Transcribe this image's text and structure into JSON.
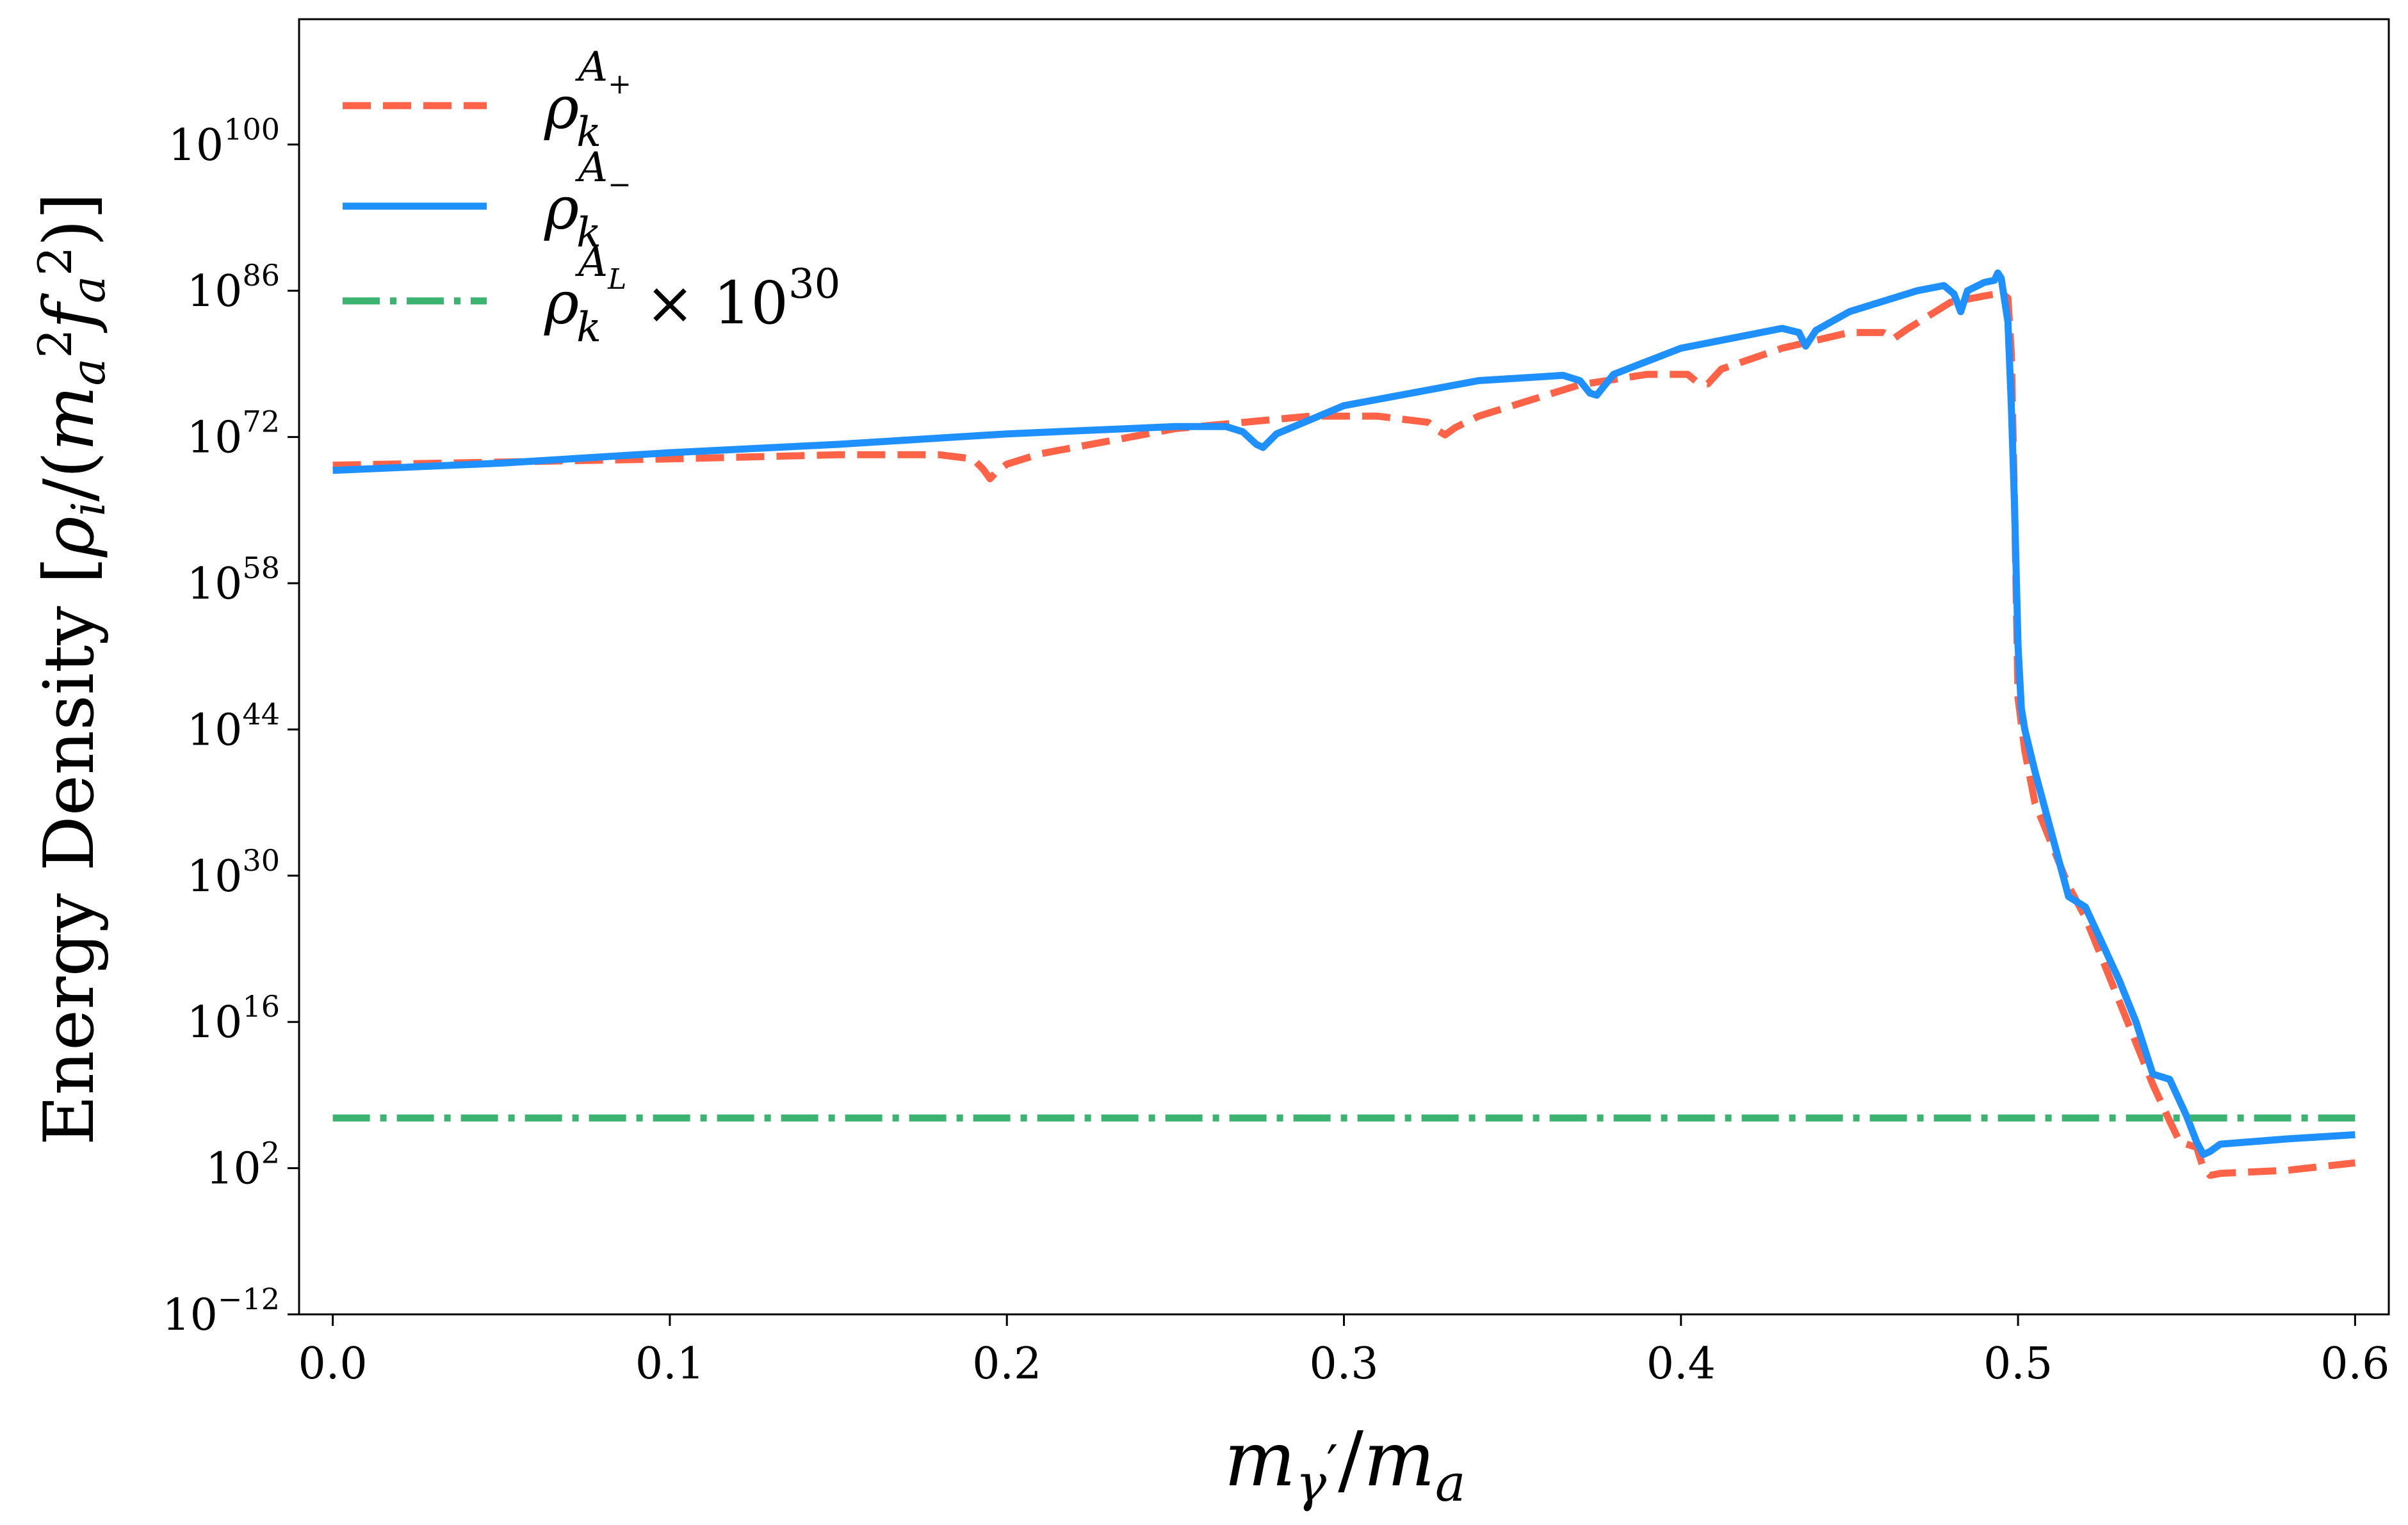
{
  "chart_data": {
    "type": "line",
    "xlabel": "m_γ′/m_a",
    "ylabel": "Energy Density [ρ_i/(m_a² f_a²)]",
    "xlim": [
      -0.01,
      0.61
    ],
    "ylim_log10": [
      -12,
      112
    ],
    "x_ticks": [
      0.0,
      0.1,
      0.2,
      0.3,
      0.4,
      0.5,
      0.6
    ],
    "x_tick_labels": [
      "0.0",
      "0.1",
      "0.2",
      "0.3",
      "0.4",
      "0.5",
      "0.6"
    ],
    "y_ticks_log10": [
      -12,
      2,
      16,
      30,
      44,
      58,
      72,
      86,
      100
    ],
    "y_tick_labels": [
      {
        "base": "10",
        "exp": "−12"
      },
      {
        "base": "10",
        "exp": "2"
      },
      {
        "base": "10",
        "exp": "16"
      },
      {
        "base": "10",
        "exp": "30"
      },
      {
        "base": "10",
        "exp": "44"
      },
      {
        "base": "10",
        "exp": "58"
      },
      {
        "base": "10",
        "exp": "72"
      },
      {
        "base": "10",
        "exp": "86"
      },
      {
        "base": "10",
        "exp": "100"
      }
    ],
    "legend_position": "top-left",
    "series": [
      {
        "name": "rho_k^{A+}",
        "label": {
          "main": "ρ",
          "sub": "k",
          "sup_main": "A",
          "sup_sub": "+",
          "suffix": ""
        },
        "color": "#ff6347",
        "style": "dashed",
        "x": [
          0.0,
          0.05,
          0.1,
          0.15,
          0.18,
          0.19,
          0.193,
          0.195,
          0.197,
          0.2,
          0.21,
          0.25,
          0.29,
          0.31,
          0.325,
          0.328,
          0.33,
          0.333,
          0.34,
          0.37,
          0.39,
          0.402,
          0.405,
          0.408,
          0.412,
          0.43,
          0.45,
          0.46,
          0.463,
          0.467,
          0.48,
          0.495,
          0.497,
          0.498,
          0.499,
          0.5,
          0.502,
          0.505,
          0.51,
          0.515,
          0.52,
          0.525,
          0.53,
          0.535,
          0.54,
          0.545,
          0.548,
          0.55,
          0.553,
          0.555,
          0.557,
          0.56,
          0.58,
          0.6
        ],
        "y_log10": [
          69.3,
          69.6,
          69.9,
          70.3,
          70.3,
          69.9,
          68.9,
          68.0,
          68.7,
          69.4,
          70.4,
          72.8,
          74.0,
          74.0,
          73.4,
          72.6,
          72.2,
          72.9,
          74.0,
          77.0,
          78.0,
          78.0,
          77.2,
          77.1,
          78.5,
          80.5,
          82.0,
          82.0,
          81.4,
          82.3,
          84.9,
          85.8,
          85.3,
          80.0,
          65.0,
          47.0,
          42.0,
          37.0,
          33.0,
          29.0,
          26.0,
          22.0,
          18.0,
          14.0,
          10.0,
          6.5,
          4.5,
          4.3,
          4.0,
          2.0,
          1.3,
          1.5,
          1.8,
          2.5
        ]
      },
      {
        "name": "rho_k^{A-}",
        "label": {
          "main": "ρ",
          "sub": "k",
          "sup_main": "A",
          "sup_sub": "−",
          "suffix": ""
        },
        "color": "#1e90ff",
        "style": "solid",
        "x": [
          0.0,
          0.05,
          0.1,
          0.15,
          0.2,
          0.25,
          0.265,
          0.27,
          0.274,
          0.276,
          0.28,
          0.3,
          0.34,
          0.365,
          0.37,
          0.373,
          0.375,
          0.38,
          0.4,
          0.43,
          0.435,
          0.437,
          0.44,
          0.45,
          0.47,
          0.478,
          0.481,
          0.483,
          0.485,
          0.49,
          0.493,
          0.494,
          0.495,
          0.497,
          0.498,
          0.499,
          0.5,
          0.501,
          0.502,
          0.505,
          0.51,
          0.515,
          0.52,
          0.53,
          0.535,
          0.54,
          0.545,
          0.55,
          0.553,
          0.555,
          0.557,
          0.56,
          0.58,
          0.6
        ],
        "y_log10": [
          68.8,
          69.5,
          70.5,
          71.3,
          72.3,
          73.0,
          73.0,
          72.5,
          71.3,
          71.0,
          72.3,
          75.0,
          77.4,
          77.9,
          77.4,
          76.2,
          76.0,
          78.0,
          80.5,
          82.4,
          82.0,
          80.7,
          82.2,
          84.0,
          86.0,
          86.5,
          85.7,
          84.0,
          86.0,
          86.8,
          87.0,
          87.7,
          87.2,
          83.0,
          75.0,
          65.0,
          52.0,
          46.0,
          44.0,
          40.0,
          34.0,
          28.0,
          27.0,
          20.0,
          16.0,
          11.0,
          10.5,
          7.0,
          4.5,
          3.3,
          3.6,
          4.3,
          4.8,
          5.2
        ]
      },
      {
        "name": "rho_k^{A_L} x 10^30",
        "label": {
          "main": "ρ",
          "sub": "k",
          "sup_main": "A",
          "sup_sub": "L",
          "suffix": " × 10",
          "suffix_sup": "30"
        },
        "color": "#3cb371",
        "style": "dashdot",
        "x": [
          0.0,
          0.6
        ],
        "y_log10": [
          6.8,
          6.8
        ]
      }
    ]
  }
}
